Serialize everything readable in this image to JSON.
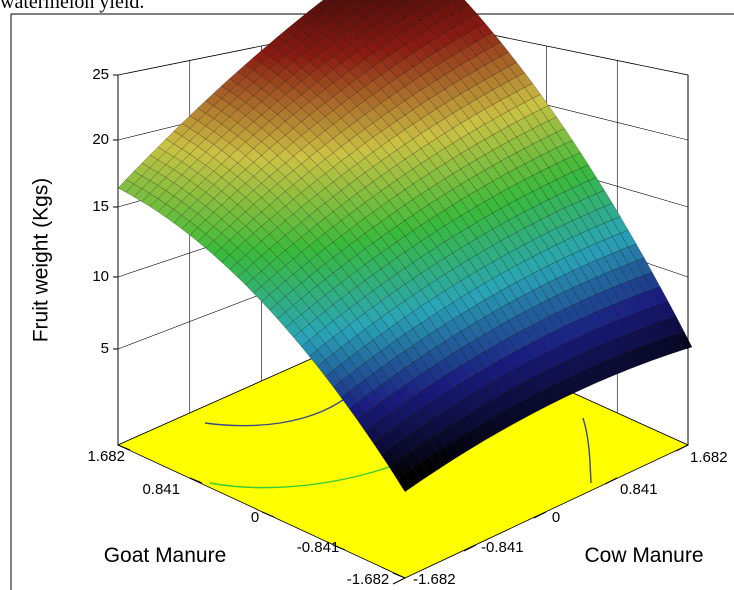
{
  "caption": "watermelon yield.",
  "chart_data": {
    "type": "surface3d",
    "title": "",
    "zlabel": "Fruit weight (Kgs)",
    "xlabel": "Goat Manure",
    "ylabel": "Cow Manure",
    "z_ticks": [
      "5",
      "10",
      "15",
      "20",
      "25"
    ],
    "x_ticks": [
      "1.682",
      "0.841",
      "0",
      "-0.841",
      "-1.682"
    ],
    "y_ticks": [
      "-1.682",
      "-0.841",
      "0",
      "0.841",
      "1.682"
    ],
    "zlim": [
      5,
      25
    ],
    "xlim": [
      -1.682,
      1.682
    ],
    "ylim": [
      -1.682,
      1.682
    ],
    "corner_values": [
      {
        "goat_manure": 1.682,
        "cow_manure": -1.682,
        "fruit_weight": 16.5
      },
      {
        "goat_manure": -1.682,
        "cow_manure": -1.682,
        "fruit_weight": 4.3
      },
      {
        "goat_manure": -1.682,
        "cow_manure": 1.682,
        "fruit_weight": 5.5
      },
      {
        "goat_manure": 1.682,
        "cow_manure": 1.682,
        "fruit_weight": 25.0
      }
    ],
    "contour_floor_color": "#ffff00",
    "colormap": [
      "#000000",
      "#1a1a80",
      "#2aa5b8",
      "#3aba3a",
      "#ccc244",
      "#8a1a12",
      "#200404"
    ],
    "grid": true
  }
}
